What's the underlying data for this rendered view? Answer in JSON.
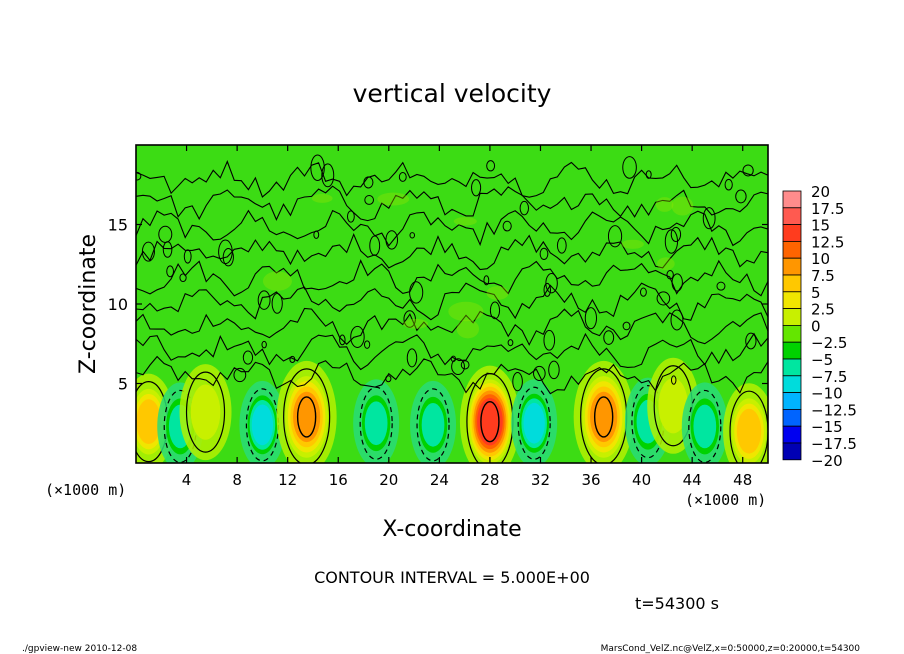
{
  "chart_data": {
    "type": "heatmap",
    "title": "vertical velocity",
    "xlabel": "X-coordinate",
    "ylabel": "Z-coordinate",
    "x_units_left": "(×1000 m)",
    "x_units_right": "(×1000 m)",
    "xlim": [
      0,
      50
    ],
    "ylim": [
      0,
      20
    ],
    "x_ticks": [
      "4",
      "8",
      "12",
      "16",
      "20",
      "24",
      "28",
      "32",
      "36",
      "40",
      "44",
      "48"
    ],
    "y_ticks": [
      "5",
      "10",
      "15"
    ],
    "contour_interval_label": "CONTOUR INTERVAL = 5.000E+00",
    "time_label": "t=54300 s",
    "footer_left": "./gpview-new   2010-12-08",
    "footer_right": "MarsCond_VelZ.nc@VelZ,x=0:50000,z=0:20000,t=54300",
    "colorbar": {
      "labels": [
        "20",
        "17.5",
        "15",
        "12.5",
        "10",
        "7.5",
        "5",
        "2.5",
        "0",
        "−2.5",
        "−5",
        "−7.5",
        "−10",
        "−12.5",
        "−15",
        "−17.5",
        "−20"
      ],
      "colors": [
        "#ff8c8c",
        "#ff5a50",
        "#ff3c1e",
        "#ff6400",
        "#ff9600",
        "#ffc800",
        "#f0e600",
        "#c8f000",
        "#64e600",
        "#00d200",
        "#00e6a0",
        "#00dcdc",
        "#00b4ff",
        "#0064ff",
        "#0000f0",
        "#0000b4",
        "#5000aa"
      ]
    },
    "features": [
      {
        "kind": "updraft",
        "x_center": 1,
        "z_center": 2.6,
        "peak": 7.5
      },
      {
        "kind": "downdraft",
        "x_center": 3.5,
        "z_center": 2.3,
        "peak": -5
      },
      {
        "kind": "updraft",
        "x_center": 5.5,
        "z_center": 3.2,
        "peak": 2.5
      },
      {
        "kind": "downdraft",
        "x_center": 10,
        "z_center": 2.4,
        "peak": -7.5
      },
      {
        "kind": "updraft",
        "x_center": 13.5,
        "z_center": 2.9,
        "peak": 10
      },
      {
        "kind": "downdraft",
        "x_center": 19,
        "z_center": 2.5,
        "peak": -5
      },
      {
        "kind": "downdraft",
        "x_center": 23.5,
        "z_center": 2.4,
        "peak": -5
      },
      {
        "kind": "updraft",
        "x_center": 28,
        "z_center": 2.6,
        "peak": 15
      },
      {
        "kind": "downdraft",
        "x_center": 31.5,
        "z_center": 2.5,
        "peak": -7.5
      },
      {
        "kind": "updraft",
        "x_center": 37,
        "z_center": 2.9,
        "peak": 10
      },
      {
        "kind": "downdraft",
        "x_center": 40.5,
        "z_center": 2.6,
        "peak": -5
      },
      {
        "kind": "updraft",
        "x_center": 42.5,
        "z_center": 3.6,
        "peak": 2.5
      },
      {
        "kind": "downdraft",
        "x_center": 45,
        "z_center": 2.3,
        "peak": -5
      },
      {
        "kind": "updraft",
        "x_center": 48.5,
        "z_center": 2.0,
        "peak": 7.5
      }
    ]
  }
}
